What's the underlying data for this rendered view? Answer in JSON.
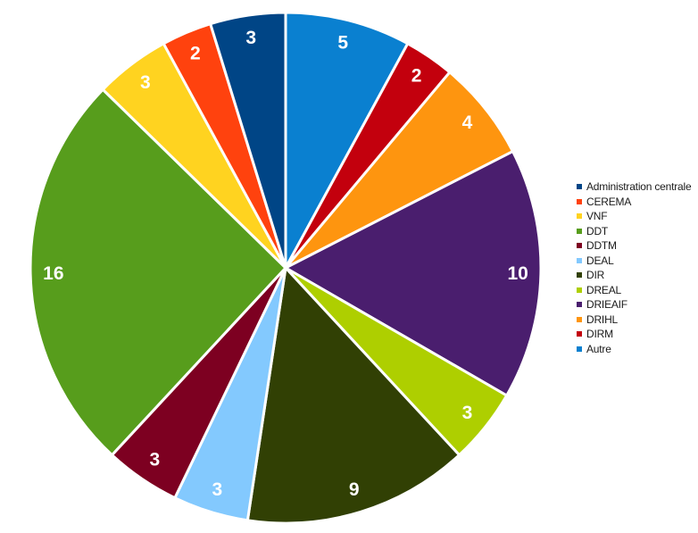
{
  "chart_data": {
    "type": "pie",
    "title": "",
    "legend_position": "right",
    "slices": [
      {
        "name": "Autre",
        "value": 5,
        "color": "#0a80d0"
      },
      {
        "name": "DIRM",
        "value": 2,
        "color": "#c3000d"
      },
      {
        "name": "DRIHL",
        "value": 4,
        "color": "#fe950f"
      },
      {
        "name": "DRIEAIF",
        "value": 10,
        "color": "#4a1e6e"
      },
      {
        "name": "DREAL",
        "value": 3,
        "color": "#aecf00"
      },
      {
        "name": "DIR",
        "value": 9,
        "color": "#314004"
      },
      {
        "name": "DEAL",
        "value": 3,
        "color": "#83c9fe"
      },
      {
        "name": "DDTM",
        "value": 3,
        "color": "#7d0021"
      },
      {
        "name": "DDT",
        "value": 16,
        "color": "#579d1c"
      },
      {
        "name": "VNF",
        "value": 3,
        "color": "#ffd320"
      },
      {
        "name": "CEREMA",
        "value": 2,
        "color": "#ff420e"
      },
      {
        "name": "Administration centrale",
        "value": 3,
        "color": "#004586"
      }
    ],
    "legend": [
      "Administration centrale",
      "CEREMA",
      "VNF",
      "DDT",
      "DDTM",
      "DEAL",
      "DIR",
      "DREAL",
      "DRIEAIF",
      "DRIHL",
      "DIRM",
      "Autre"
    ]
  }
}
